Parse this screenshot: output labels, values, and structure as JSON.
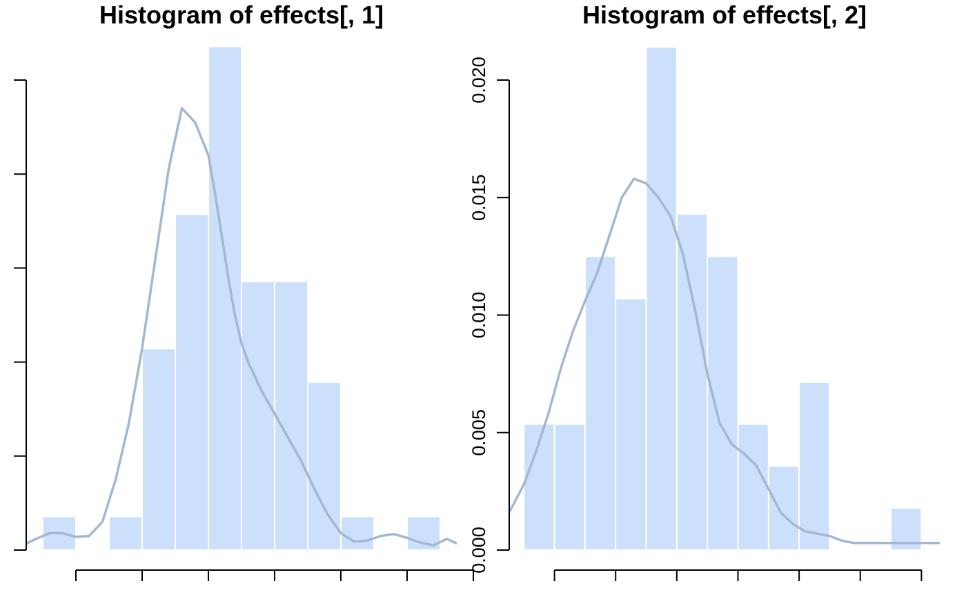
{
  "chart_data": [
    {
      "type": "histogram",
      "title": "Histogram of effects[, 1]",
      "xlabel": "",
      "ylabel": "",
      "x_ticks": [
        -0.3,
        -0.2,
        -0.1,
        0.0,
        0.1,
        0.2,
        0.3
      ],
      "x_tick_labels": [
        "",
        "",
        "",
        "",
        "",
        "",
        ""
      ],
      "y_ticks": [
        0,
        1,
        2,
        3,
        4,
        5
      ],
      "y_tick_labels": [
        "",
        "",
        "",
        "",
        "",
        ""
      ],
      "xlim": [
        -0.375,
        0.275
      ],
      "ylim": [
        0,
        5
      ],
      "bins": [
        {
          "x0": -0.35,
          "x1": -0.3,
          "height": 0.357
        },
        {
          "x0": -0.3,
          "x1": -0.25,
          "height": 0.0
        },
        {
          "x0": -0.25,
          "x1": -0.2,
          "height": 0.357
        },
        {
          "x0": -0.2,
          "x1": -0.15,
          "height": 2.143
        },
        {
          "x0": -0.15,
          "x1": -0.1,
          "height": 3.571
        },
        {
          "x0": -0.1,
          "x1": -0.05,
          "height": 5.357
        },
        {
          "x0": -0.05,
          "x1": 0.0,
          "height": 2.857
        },
        {
          "x0": 0.0,
          "x1": 0.05,
          "height": 2.857
        },
        {
          "x0": 0.05,
          "x1": 0.1,
          "height": 1.786
        },
        {
          "x0": 0.1,
          "x1": 0.15,
          "height": 0.357
        },
        {
          "x0": 0.15,
          "x1": 0.2,
          "height": 0.0
        },
        {
          "x0": 0.2,
          "x1": 0.25,
          "height": 0.357
        }
      ],
      "density": {
        "x": [
          -0.375,
          -0.36,
          -0.34,
          -0.32,
          -0.3,
          -0.28,
          -0.26,
          -0.24,
          -0.22,
          -0.2,
          -0.18,
          -0.16,
          -0.14,
          -0.12,
          -0.1,
          -0.09,
          -0.08,
          -0.07,
          -0.06,
          -0.05,
          -0.04,
          -0.02,
          0.0,
          0.02,
          0.04,
          0.06,
          0.08,
          0.1,
          0.12,
          0.14,
          0.16,
          0.18,
          0.2,
          0.22,
          0.24,
          0.26,
          0.275
        ],
        "y": [
          0.07,
          0.12,
          0.18,
          0.18,
          0.14,
          0.15,
          0.3,
          0.75,
          1.35,
          2.15,
          3.1,
          4.05,
          4.7,
          4.55,
          4.2,
          3.8,
          3.35,
          2.9,
          2.5,
          2.2,
          2.0,
          1.7,
          1.45,
          1.2,
          0.95,
          0.65,
          0.38,
          0.18,
          0.09,
          0.1,
          0.15,
          0.17,
          0.13,
          0.08,
          0.05,
          0.12,
          0.07
        ]
      }
    },
    {
      "type": "histogram",
      "title": "Histogram of effects[, 2]",
      "xlabel": "",
      "ylabel": "",
      "x_ticks": [
        -150,
        -100,
        -50,
        0,
        50,
        100,
        150
      ],
      "x_tick_labels": [
        "",
        "",
        "",
        "",
        "",
        "",
        ""
      ],
      "y_ticks": [
        0.0,
        0.005,
        0.01,
        0.015,
        0.02
      ],
      "y_tick_labels": [
        "0.000",
        "0.005",
        "0.010",
        "0.015",
        "0.020"
      ],
      "xlim": [
        -187,
        165
      ],
      "ylim": [
        0,
        0.02
      ],
      "bins": [
        {
          "x0": -175,
          "x1": -150,
          "height": 0.00536
        },
        {
          "x0": -150,
          "x1": -125,
          "height": 0.00536
        },
        {
          "x0": -125,
          "x1": -100,
          "height": 0.0125
        },
        {
          "x0": -100,
          "x1": -75,
          "height": 0.0107
        },
        {
          "x0": -75,
          "x1": -50,
          "height": 0.0214
        },
        {
          "x0": -50,
          "x1": -25,
          "height": 0.0143
        },
        {
          "x0": -25,
          "x1": 0,
          "height": 0.0125
        },
        {
          "x0": 0,
          "x1": 25,
          "height": 0.00536
        },
        {
          "x0": 25,
          "x1": 50,
          "height": 0.00357
        },
        {
          "x0": 50,
          "x1": 75,
          "height": 0.00714
        },
        {
          "x0": 75,
          "x1": 100,
          "height": 0.0
        },
        {
          "x0": 100,
          "x1": 125,
          "height": 0.0
        },
        {
          "x0": 125,
          "x1": 150,
          "height": 0.00179
        }
      ],
      "density": {
        "x": [
          -187,
          -175,
          -165,
          -155,
          -145,
          -135,
          -125,
          -115,
          -105,
          -95,
          -85,
          -75,
          -65,
          -55,
          -45,
          -35,
          -25,
          -15,
          -5,
          5,
          15,
          25,
          35,
          45,
          55,
          65,
          75,
          85,
          95,
          105,
          115,
          125,
          135,
          145,
          155,
          165
        ],
        "y": [
          0.0016,
          0.0028,
          0.0042,
          0.0058,
          0.0077,
          0.0093,
          0.0106,
          0.0118,
          0.0134,
          0.015,
          0.0158,
          0.0156,
          0.015,
          0.0142,
          0.0126,
          0.0102,
          0.0075,
          0.0054,
          0.0045,
          0.0041,
          0.0036,
          0.0026,
          0.0016,
          0.0011,
          0.0008,
          0.0007,
          0.0006,
          0.0004,
          0.0003,
          0.0003,
          0.0003,
          0.0003,
          0.0003,
          0.0003,
          0.0003,
          0.0003
        ]
      }
    }
  ]
}
